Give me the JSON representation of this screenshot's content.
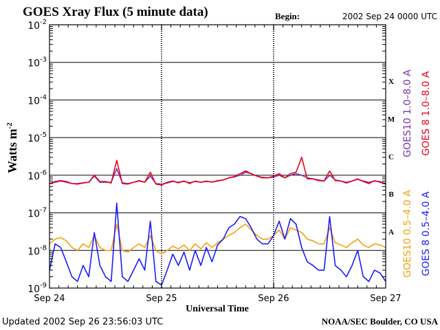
{
  "title": "GOES Xray Flux (5 minute data)",
  "begin": {
    "label": "Begin:",
    "value": "2002 Sep 24 0000 UTC"
  },
  "footer": {
    "updated_label": "Updated",
    "updated_value": "2002 Sep 26 23:56:03 UTC",
    "source": "NOAA/SEC Boulder, CO USA"
  },
  "colors": {
    "goes10_long": "#7b2fa8",
    "goes8_long": "#e8001c",
    "goes10_short": "#f2a10a",
    "goes8_short": "#1a1aff",
    "frame": "#000000"
  },
  "chart_data": {
    "type": "line",
    "title": "GOES Xray Flux (5 minute data)",
    "xlabel": "Universal Time",
    "ylabel": "Watts m",
    "ylabel_exponent": "-2",
    "y_scale": "log",
    "ylim": [
      1e-09,
      0.01
    ],
    "y_ticks": [
      {
        "base": "10",
        "exp": "-2"
      },
      {
        "base": "10",
        "exp": "-3"
      },
      {
        "base": "10",
        "exp": "-4"
      },
      {
        "base": "10",
        "exp": "-5"
      },
      {
        "base": "10",
        "exp": "-6"
      },
      {
        "base": "10",
        "exp": "-7"
      },
      {
        "base": "10",
        "exp": "-8"
      },
      {
        "base": "10",
        "exp": "-9"
      }
    ],
    "x_unit": "day offset from 2002 Sep 24 00:00 UTC",
    "xlim": [
      0,
      3
    ],
    "x_ticks": [
      "Sep 24",
      "Sep 25",
      "Sep 26",
      "Sep 27"
    ],
    "flare_classes": [
      "X",
      "M",
      "C",
      "B",
      "A"
    ],
    "grid": true,
    "legend_placement": "right",
    "series": [
      {
        "name": "GOES10 1.0–8.0 A",
        "color": "#7b2fa8",
        "x": [
          0,
          0.05,
          0.1,
          0.15,
          0.2,
          0.25,
          0.3,
          0.35,
          0.4,
          0.45,
          0.5,
          0.55,
          0.6,
          0.65,
          0.7,
          0.75,
          0.8,
          0.85,
          0.9,
          0.95,
          1.0,
          1.05,
          1.1,
          1.15,
          1.2,
          1.25,
          1.3,
          1.35,
          1.4,
          1.45,
          1.5,
          1.55,
          1.6,
          1.65,
          1.7,
          1.75,
          1.8,
          1.85,
          1.9,
          1.95,
          2.0,
          2.05,
          2.1,
          2.15,
          2.2,
          2.25,
          2.3,
          2.35,
          2.4,
          2.45,
          2.5,
          2.55,
          2.6,
          2.65,
          2.7,
          2.75,
          2.8,
          2.85,
          2.9,
          2.95,
          3.0
        ],
        "y": [
          6e-07,
          6.5e-07,
          7e-07,
          6.5e-07,
          6e-07,
          6e-07,
          6.3e-07,
          6.5e-07,
          9.5e-07,
          6.5e-07,
          6.5e-07,
          6.5e-07,
          1.5e-06,
          6.3e-07,
          6e-07,
          6.5e-07,
          7e-07,
          6.5e-07,
          9.5e-07,
          6e-07,
          5.8e-07,
          6.2e-07,
          6.8e-07,
          6.5e-07,
          6.8e-07,
          6.3e-07,
          6.8e-07,
          6.5e-07,
          6.8e-07,
          6.6e-07,
          7e-07,
          7.5e-07,
          8.5e-07,
          9e-07,
          1e-06,
          1.2e-06,
          1.1e-06,
          9.5e-07,
          8.8e-07,
          8.5e-07,
          9e-07,
          1e-06,
          8.5e-07,
          1e-06,
          1.1e-06,
          1e-06,
          8.5e-07,
          8e-07,
          7.5e-07,
          7e-07,
          1e-06,
          7.5e-07,
          7e-07,
          6.5e-07,
          7e-07,
          7.8e-07,
          7e-07,
          6.5e-07,
          7e-07,
          6.8e-07,
          6e-07
        ]
      },
      {
        "name": "GOES 8 1.0–8.0 A",
        "color": "#e8001c",
        "x": [
          0,
          0.05,
          0.1,
          0.15,
          0.2,
          0.25,
          0.3,
          0.35,
          0.4,
          0.45,
          0.5,
          0.55,
          0.6,
          0.65,
          0.7,
          0.75,
          0.8,
          0.85,
          0.9,
          0.95,
          1.0,
          1.05,
          1.1,
          1.15,
          1.2,
          1.25,
          1.3,
          1.35,
          1.4,
          1.45,
          1.5,
          1.55,
          1.6,
          1.65,
          1.7,
          1.75,
          1.8,
          1.85,
          1.9,
          1.95,
          2.0,
          2.05,
          2.1,
          2.15,
          2.2,
          2.25,
          2.3,
          2.35,
          2.4,
          2.45,
          2.5,
          2.55,
          2.6,
          2.65,
          2.7,
          2.75,
          2.8,
          2.85,
          2.9,
          2.95,
          3.0
        ],
        "y": [
          6e-07,
          6.8e-07,
          7.2e-07,
          6.8e-07,
          6e-07,
          5.8e-07,
          6.2e-07,
          6.5e-07,
          1e-06,
          6.8e-07,
          6.8e-07,
          6.2e-07,
          2.5e-06,
          6e-07,
          5.8e-07,
          6.5e-07,
          7.2e-07,
          6.5e-07,
          1.2e-06,
          5.8e-07,
          5.5e-07,
          6.5e-07,
          7e-07,
          6.3e-07,
          7e-07,
          6e-07,
          7e-07,
          6.5e-07,
          7e-07,
          6.5e-07,
          7.2e-07,
          7.5e-07,
          8.5e-07,
          9.2e-07,
          1.1e-06,
          1.3e-06,
          1.1e-06,
          9.5e-07,
          8.5e-07,
          8.5e-07,
          9.5e-07,
          1.1e-06,
          8.5e-07,
          1.1e-06,
          1.2e-06,
          3e-06,
          8e-07,
          8e-07,
          7.2e-07,
          7e-07,
          1.3e-06,
          7.2e-07,
          7e-07,
          6.2e-07,
          7e-07,
          8e-07,
          6.8e-07,
          6e-07,
          7.2e-07,
          6.5e-07,
          5.8e-07
        ]
      },
      {
        "name": "GOES10 0.5–4.0 A",
        "color": "#f2a10a",
        "x": [
          0,
          0.05,
          0.1,
          0.15,
          0.2,
          0.25,
          0.3,
          0.35,
          0.4,
          0.45,
          0.5,
          0.55,
          0.6,
          0.65,
          0.7,
          0.75,
          0.8,
          0.85,
          0.9,
          0.95,
          1.0,
          1.05,
          1.1,
          1.15,
          1.2,
          1.25,
          1.3,
          1.35,
          1.4,
          1.45,
          1.5,
          1.55,
          1.6,
          1.65,
          1.7,
          1.75,
          1.8,
          1.85,
          1.9,
          1.95,
          2.0,
          2.05,
          2.1,
          2.15,
          2.2,
          2.25,
          2.3,
          2.35,
          2.4,
          2.45,
          2.5,
          2.55,
          2.6,
          2.65,
          2.7,
          2.75,
          2.8,
          2.85,
          2.9,
          2.95,
          3.0
        ],
        "y": [
          1.5e-08,
          2e-08,
          2.2e-08,
          1.8e-08,
          1.2e-08,
          1e-08,
          1.5e-08,
          1.2e-08,
          2.5e-08,
          1.2e-08,
          1e-08,
          1e-08,
          5e-08,
          1e-08,
          9e-09,
          1.2e-08,
          1.5e-08,
          1.2e-08,
          2.5e-08,
          1e-08,
          8e-09,
          1e-08,
          1.3e-08,
          1.1e-08,
          1.4e-08,
          1e-08,
          1.5e-08,
          1.1e-08,
          1.6e-08,
          1.2e-08,
          1.6e-08,
          2e-08,
          2.5e-08,
          3e-08,
          4e-08,
          5e-08,
          3.5e-08,
          2.5e-08,
          2e-08,
          2e-08,
          2.5e-08,
          3.5e-08,
          2e-08,
          4e-08,
          3.5e-08,
          3e-08,
          2e-08,
          1.8e-08,
          1.5e-08,
          1.5e-08,
          4e-08,
          1.6e-08,
          1.4e-08,
          1.2e-08,
          1.6e-08,
          2e-08,
          1.4e-08,
          1.2e-08,
          1.5e-08,
          1.4e-08,
          1.2e-08
        ]
      },
      {
        "name": "GOES 8 0.5–4.0 A",
        "color": "#1a1aff",
        "x": [
          0,
          0.05,
          0.1,
          0.15,
          0.2,
          0.25,
          0.3,
          0.35,
          0.4,
          0.45,
          0.5,
          0.55,
          0.6,
          0.65,
          0.7,
          0.75,
          0.8,
          0.85,
          0.9,
          0.95,
          1.0,
          1.05,
          1.1,
          1.15,
          1.2,
          1.25,
          1.3,
          1.35,
          1.4,
          1.45,
          1.5,
          1.55,
          1.6,
          1.65,
          1.7,
          1.75,
          1.8,
          1.85,
          1.9,
          1.95,
          2.0,
          2.05,
          2.1,
          2.15,
          2.2,
          2.25,
          2.3,
          2.35,
          2.4,
          2.45,
          2.5,
          2.55,
          2.6,
          2.65,
          2.7,
          2.75,
          2.8,
          2.85,
          2.9,
          2.95,
          3.0
        ],
        "y": [
          3e-09,
          1.5e-08,
          1.2e-08,
          5e-09,
          2e-09,
          1.5e-09,
          4e-09,
          2e-09,
          3e-08,
          4e-09,
          2e-09,
          1.5e-09,
          1.8e-07,
          2e-09,
          1.5e-09,
          3e-09,
          6e-09,
          3e-09,
          6e-08,
          1.5e-09,
          1.2e-09,
          3e-09,
          8e-09,
          4e-09,
          9e-09,
          3e-09,
          1e-08,
          4e-09,
          1.2e-08,
          5e-09,
          1.4e-08,
          2e-08,
          4e-08,
          5e-08,
          8e-08,
          7e-08,
          4e-08,
          2e-08,
          1.5e-08,
          1.5e-08,
          2.5e-08,
          6e-08,
          2e-08,
          7e-08,
          5e-08,
          1.2e-08,
          5e-09,
          4e-09,
          3e-09,
          3e-09,
          8e-08,
          4e-09,
          3e-09,
          2e-09,
          4e-09,
          1e-08,
          2e-09,
          1.5e-09,
          3e-09,
          2.5e-09,
          1.5e-09
        ]
      }
    ]
  }
}
